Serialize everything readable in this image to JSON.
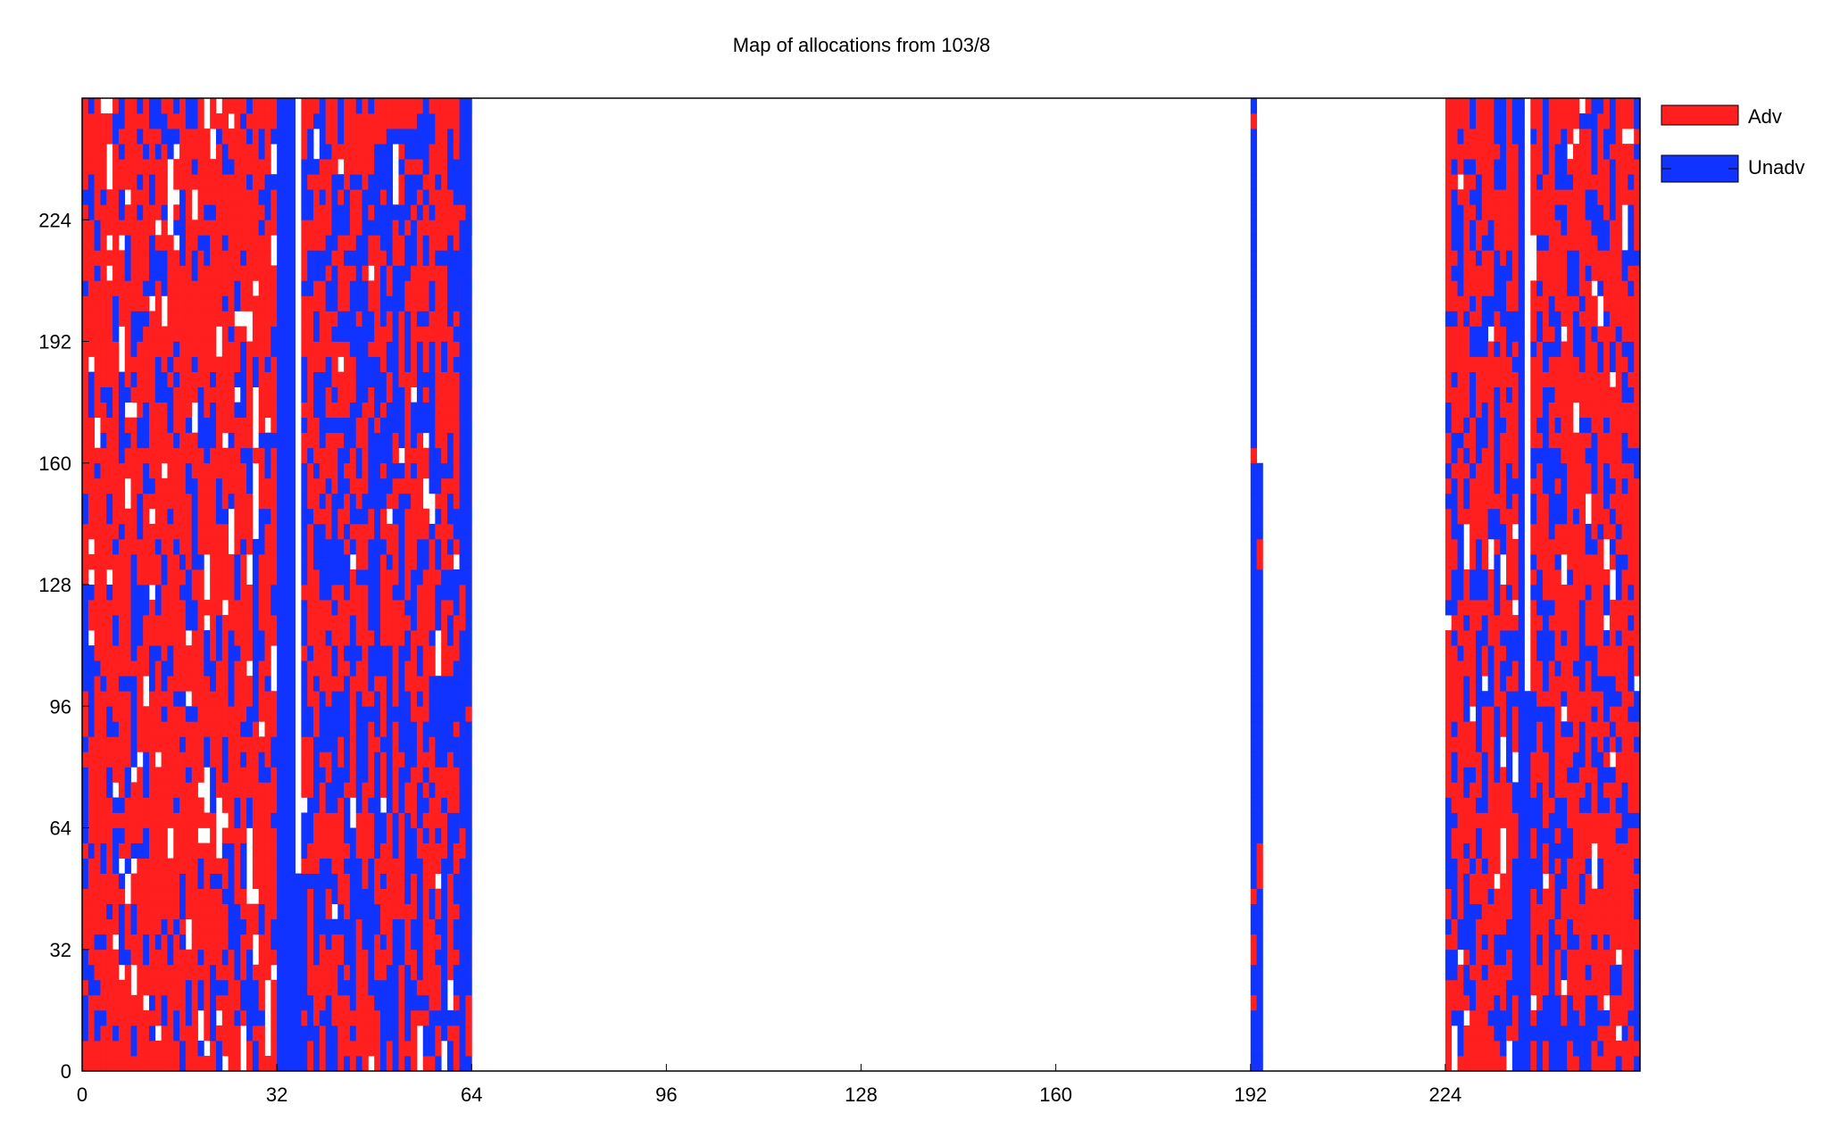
{
  "chart_data": {
    "type": "heatmap",
    "title": "Map of allocations from 103/8",
    "xlabel": "",
    "ylabel": "",
    "xlim": [
      0,
      256
    ],
    "ylim": [
      0,
      256
    ],
    "x_ticks": [
      0,
      32,
      64,
      96,
      128,
      160,
      192,
      224
    ],
    "y_ticks": [
      0,
      32,
      64,
      96,
      128,
      160,
      192,
      224
    ],
    "grid": false,
    "legend_position": "right",
    "series": [
      {
        "name": "Adv",
        "color": "#ff1f1f"
      },
      {
        "name": "Unadv",
        "color": "#1133ff"
      }
    ],
    "x_axis_label_text": [
      "0",
      "32",
      "64",
      "96",
      "128",
      "160",
      "192",
      "224"
    ],
    "y_axis_label_text": [
      "0",
      "32",
      "64",
      "96",
      "128",
      "160",
      "192",
      "224"
    ],
    "blocks": [
      {
        "x_range": [
          0,
          32
        ],
        "y_range": [
          0,
          256
        ],
        "adv_share": 0.72,
        "unadv_share": 0.22
      },
      {
        "x_range": [
          32,
          35
        ],
        "y_range": [
          0,
          256
        ],
        "adv_share": 0.0,
        "unadv_share": 1.0
      },
      {
        "x_range": [
          35,
          36
        ],
        "y_range": [
          0,
          52
        ],
        "adv_share": 0.0,
        "unadv_share": 1.0
      },
      {
        "x_range": [
          36,
          64
        ],
        "y_range": [
          0,
          256
        ],
        "adv_share": 0.52,
        "unadv_share": 0.46
      },
      {
        "x_range": [
          62,
          64
        ],
        "y_range": [
          0,
          256
        ],
        "adv_share": 0.08,
        "unadv_share": 0.92
      },
      {
        "x_range": [
          192,
          193
        ],
        "y_range": [
          0,
          256
        ],
        "adv_share": 0.05,
        "unadv_share": 0.95
      },
      {
        "x_range": [
          193,
          194
        ],
        "y_range": [
          0,
          160
        ],
        "adv_share": 0.1,
        "unadv_share": 0.9
      },
      {
        "x_range": [
          224,
          236
        ],
        "y_range": [
          0,
          256
        ],
        "adv_share": 0.65,
        "unadv_share": 0.31
      },
      {
        "x_range": [
          236,
          237
        ],
        "y_range": [
          0,
          256
        ],
        "adv_share": 0.0,
        "unadv_share": 1.0
      },
      {
        "x_range": [
          237,
          238
        ],
        "y_range": [
          0,
          100
        ],
        "adv_share": 0.0,
        "unadv_share": 1.0
      },
      {
        "x_range": [
          238,
          256
        ],
        "y_range": [
          0,
          256
        ],
        "adv_share": 0.66,
        "unadv_share": 0.3
      }
    ]
  }
}
